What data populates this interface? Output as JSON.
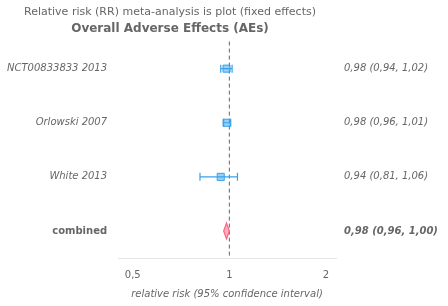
{
  "chart_data": {
    "type": "forest",
    "title": "Relative risk (RR) meta-analysis is plot (fixed effects)",
    "subtitle": "Overall Adverse Effects (AEs)",
    "xlabel": "relative risk (95% confidence interval)",
    "categories": [
      "NCT00833833 2013",
      "Orlowski 2007",
      "White 2013",
      "combined"
    ],
    "series": [
      {
        "values": [
          0.98,
          0.98,
          0.94,
          null
        ],
        "ci_low": [
          0.94,
          0.96,
          0.81,
          null
        ],
        "ci_high": [
          1.02,
          1.01,
          1.06,
          null
        ],
        "value_labels": [
          "0,98 (0,94, 1,02)",
          "0,98 (0,96, 1,01)",
          "0,94 (0,81, 1,06)",
          null
        ],
        "marker": "square"
      },
      {
        "values": [
          null,
          null,
          null,
          0.98
        ],
        "ci_low": [
          null,
          null,
          null,
          0.96
        ],
        "ci_high": [
          null,
          null,
          null,
          1.0
        ],
        "value_labels": [
          null,
          null,
          null,
          "0,98 (0,96, 1,00)"
        ],
        "marker": "diamond"
      }
    ],
    "reference_x": 1.0,
    "log": "x",
    "xlim": [
      0.45,
      2.15
    ],
    "xticks": [
      {
        "value": 0.5,
        "label": "0,5"
      },
      1,
      2
    ],
    "data_labels": true,
    "grid": false
  }
}
